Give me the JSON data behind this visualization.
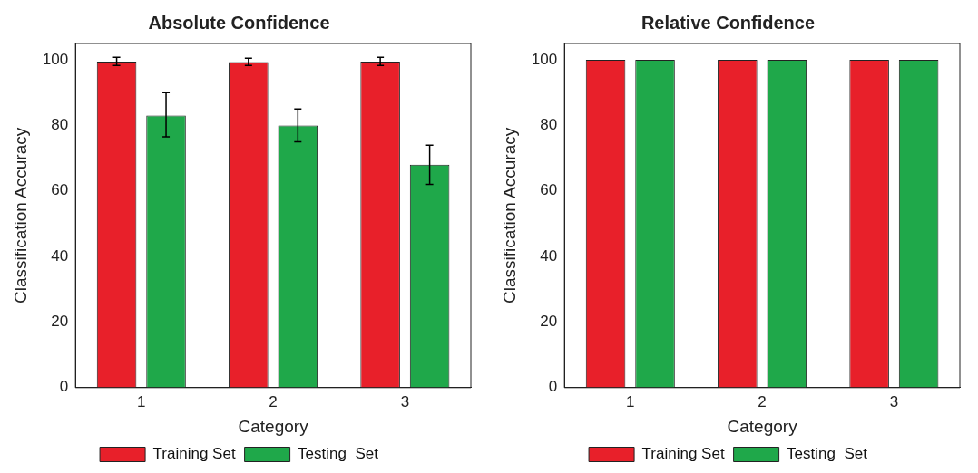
{
  "chart_data": [
    {
      "type": "bar",
      "title": "Absolute Confidence",
      "xlabel": "Category",
      "ylabel": "Classification Accuracy",
      "categories": [
        "1",
        "2",
        "3"
      ],
      "ylim": [
        0,
        105
      ],
      "yticks": [
        0,
        20,
        40,
        60,
        80,
        100
      ],
      "grid": false,
      "legend": "bottom",
      "series": [
        {
          "name": "Training Set",
          "color": "#e8202a",
          "values": [
            99.5,
            99.3,
            99.5
          ],
          "errors": [
            [
              98.3,
              100.8
            ],
            [
              98.3,
              100.5
            ],
            [
              98.3,
              100.8
            ]
          ]
        },
        {
          "name": "Testing  Set",
          "color": "#1fa84a",
          "values": [
            83,
            80,
            68
          ],
          "errors": [
            [
              76.5,
              90
            ],
            [
              75,
              85
            ],
            [
              62,
              74
            ]
          ]
        }
      ]
    },
    {
      "type": "bar",
      "title": "Relative Confidence",
      "xlabel": "Category",
      "ylabel": "Classification Accuracy",
      "categories": [
        "1",
        "2",
        "3"
      ],
      "ylim": [
        0,
        105
      ],
      "yticks": [
        0,
        20,
        40,
        60,
        80,
        100
      ],
      "grid": false,
      "legend": "bottom",
      "series": [
        {
          "name": "Training Set",
          "color": "#e8202a",
          "values": [
            100,
            100,
            100
          ]
        },
        {
          "name": "Testing  Set",
          "color": "#1fa84a",
          "values": [
            100,
            100,
            100
          ]
        }
      ]
    }
  ]
}
